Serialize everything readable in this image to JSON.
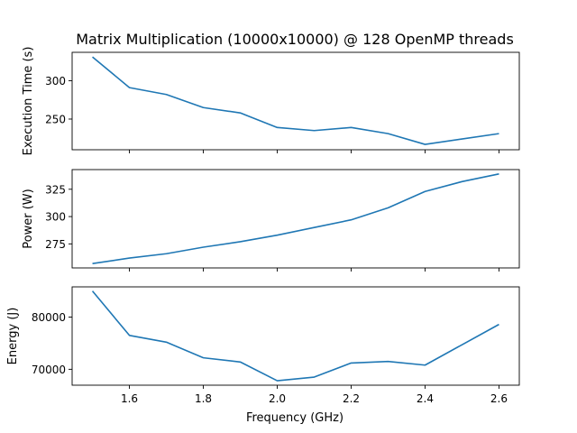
{
  "chart_data": {
    "type": "line",
    "title": "Matrix Multiplication (10000x10000) @ 128 OpenMP threads",
    "xlabel": "Frequency (GHz)",
    "x": [
      1.5,
      1.6,
      1.7,
      1.8,
      1.9,
      2.0,
      2.1,
      2.2,
      2.3,
      2.4,
      2.5,
      2.6
    ],
    "xticks": [
      "1.6",
      "1.8",
      "2.0",
      "2.2",
      "2.4",
      "2.6"
    ],
    "xlim": [
      1.445,
      2.655
    ],
    "grid": false,
    "color": "#1f77b4",
    "panels": [
      {
        "ylabel": "Execution Time (s)",
        "values": [
          331,
          291,
          282,
          265,
          258,
          239,
          235,
          239,
          231,
          217,
          224,
          231
        ],
        "ylim": [
          210,
          337
        ],
        "yticks": [
          250,
          300
        ]
      },
      {
        "ylabel": "Power (W)",
        "values": [
          257,
          262,
          266,
          272,
          277,
          283,
          290,
          297,
          308,
          323,
          332,
          339
        ],
        "ylim": [
          253,
          343
        ],
        "yticks": [
          275,
          300,
          325
        ]
      },
      {
        "ylabel": "Energy (J)",
        "values": [
          85000,
          76500,
          75200,
          72200,
          71400,
          67800,
          68500,
          71200,
          71500,
          70800,
          74700,
          78600
        ],
        "ylim": [
          66950,
          85800
        ],
        "yticks": [
          70000,
          80000
        ]
      }
    ]
  }
}
